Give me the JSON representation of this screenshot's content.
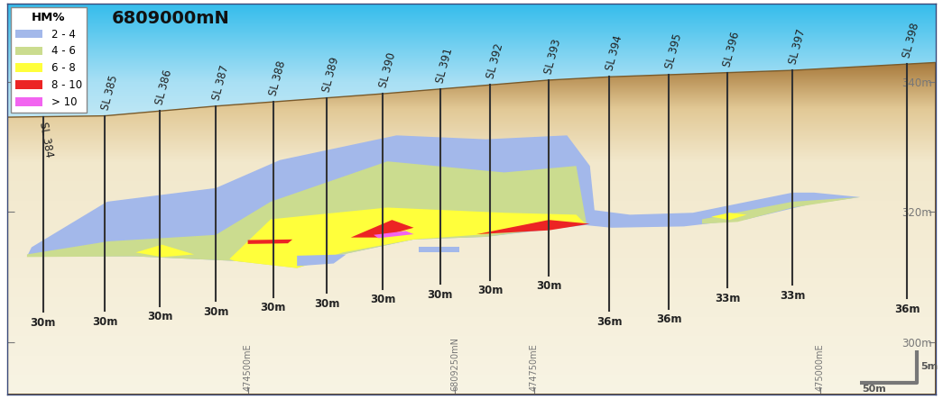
{
  "chart_data": {
    "type": "section",
    "title": "6809000mN",
    "legend": "upper left",
    "legend_title": "HM%",
    "xlim": [
      474290,
      475101
    ],
    "ylim": [
      292,
      352
    ],
    "xticks": [
      {
        "value": 474500,
        "label": "474500mE"
      },
      {
        "value": 474681,
        "label": "6809250mN"
      },
      {
        "value": 474750,
        "label": "474750mE"
      },
      {
        "value": 475000,
        "label": "475000mE"
      }
    ],
    "yticks": [
      {
        "value": 300,
        "label": "300m"
      },
      {
        "value": 320,
        "label": "320m"
      },
      {
        "value": 340,
        "label": "340m"
      }
    ],
    "series": [
      {
        "name": "2 - 4",
        "color": "#a3b8ea"
      },
      {
        "name": "4 - 6",
        "color": "#cbdc8f"
      },
      {
        "name": "6 - 8",
        "color": "#ffff3b"
      },
      {
        "name": "8 - 10",
        "color": "#ec2424"
      },
      {
        "name": "> 10",
        "color": "#f264f0"
      }
    ],
    "surface": {
      "x": [
        474290,
        474375,
        474472,
        474618,
        474763,
        474816,
        474976,
        475101
      ],
      "z": [
        334.6,
        334.8,
        336.3,
        338.2,
        340.3,
        340.8,
        341.8,
        343.0
      ]
    },
    "zones": [
      {
        "series": "2 - 4",
        "points": [
          [
            474311,
            314.6
          ],
          [
            474377,
            321.6
          ],
          [
            474472,
            323.7
          ],
          [
            474528,
            328.0
          ],
          [
            474630,
            331.8
          ],
          [
            474708,
            331.2
          ],
          [
            474779,
            331.8
          ],
          [
            474799,
            327.1
          ],
          [
            474803,
            320.3
          ],
          [
            474834,
            319.6
          ],
          [
            474889,
            319.9
          ],
          [
            474976,
            323.0
          ],
          [
            474995,
            323.0
          ],
          [
            475035,
            322.3
          ],
          [
            474991,
            321.2
          ],
          [
            474936,
            318.9
          ],
          [
            474881,
            317.8
          ],
          [
            474818,
            317.6
          ],
          [
            474795,
            318.0
          ],
          [
            474708,
            316.2
          ],
          [
            474645,
            315.8
          ],
          [
            474583,
            313.5
          ],
          [
            474543,
            311.7
          ],
          [
            474488,
            312.5
          ],
          [
            474402,
            313.2
          ],
          [
            474307,
            313.2
          ]
        ]
      },
      {
        "series": "4 - 6",
        "points": [
          [
            474307,
            313.5
          ],
          [
            474378,
            315.5
          ],
          [
            474472,
            316.5
          ],
          [
            474520,
            321.6
          ],
          [
            474622,
            327.8
          ],
          [
            474724,
            326.1
          ],
          [
            474787,
            327.1
          ],
          [
            474796,
            318.2
          ],
          [
            474708,
            316.2
          ],
          [
            474645,
            315.8
          ],
          [
            474583,
            313.5
          ],
          [
            474543,
            311.4
          ],
          [
            474488,
            312.5
          ],
          [
            474402,
            313.2
          ],
          [
            474307,
            313.1
          ]
        ]
      },
      {
        "series": "4 - 6",
        "points": [
          [
            474897,
            318.9
          ],
          [
            474976,
            321.6
          ],
          [
            475035,
            322.3
          ],
          [
            474976,
            320.7
          ],
          [
            474928,
            318.5
          ],
          [
            474897,
            318.2
          ]
        ]
      },
      {
        "series": "6 - 8",
        "points": [
          [
            474484,
            312.8
          ],
          [
            474520,
            318.9
          ],
          [
            474622,
            320.7
          ],
          [
            474724,
            319.9
          ],
          [
            474787,
            319.6
          ],
          [
            474795,
            318.2
          ],
          [
            474708,
            316.6
          ],
          [
            474645,
            315.8
          ],
          [
            474583,
            313.8
          ],
          [
            474543,
            311.4
          ],
          [
            474488,
            312.5
          ]
        ]
      },
      {
        "series": "6 - 8",
        "points": [
          [
            474402,
            313.8
          ],
          [
            474425,
            315.0
          ],
          [
            474453,
            313.5
          ],
          [
            474425,
            313.1
          ]
        ]
      },
      {
        "series": "6 - 8",
        "points": [
          [
            474905,
            319.3
          ],
          [
            474921,
            319.9
          ],
          [
            474936,
            319.6
          ],
          [
            474921,
            318.8
          ]
        ]
      },
      {
        "series": "2 - 4",
        "points": [
          [
            474649,
            314.7
          ],
          [
            474685,
            314.7
          ],
          [
            474685,
            313.9
          ],
          [
            474649,
            313.9
          ]
        ]
      },
      {
        "series": "2 - 4",
        "points": [
          [
            474543,
            313.3
          ],
          [
            474586,
            313.5
          ],
          [
            474575,
            312.1
          ],
          [
            474543,
            311.7
          ]
        ]
      },
      {
        "series": "8 - 10",
        "points": [
          [
            474500,
            315.7
          ],
          [
            474539,
            315.8
          ],
          [
            474535,
            315.2
          ],
          [
            474500,
            315.1
          ]
        ]
      },
      {
        "series": "8 - 10",
        "points": [
          [
            474590,
            316.1
          ],
          [
            474626,
            318.8
          ],
          [
            474645,
            317.6
          ],
          [
            474614,
            316.1
          ]
        ]
      },
      {
        "series": "8 - 10",
        "points": [
          [
            474700,
            316.6
          ],
          [
            474763,
            318.8
          ],
          [
            474799,
            318.2
          ],
          [
            474763,
            317.2
          ]
        ]
      },
      {
        "series": "> 10",
        "points": [
          [
            474610,
            316.5
          ],
          [
            474638,
            317.1
          ],
          [
            474645,
            316.6
          ],
          [
            474614,
            316.0
          ]
        ]
      }
    ],
    "drill_holes": [
      {
        "name": "SL 384",
        "x": 474321,
        "depth": 30,
        "depth_label": "30m"
      },
      {
        "name": "SL 385",
        "x": 474375,
        "depth": 30,
        "depth_label": "30m"
      },
      {
        "name": "SL 386",
        "x": 474423,
        "depth": 30,
        "depth_label": "30m"
      },
      {
        "name": "SL 387",
        "x": 474472,
        "depth": 30,
        "depth_label": "30m"
      },
      {
        "name": "SL 388",
        "x": 474522,
        "depth": 30,
        "depth_label": "30m"
      },
      {
        "name": "SL 389",
        "x": 474569,
        "depth": 30,
        "depth_label": "30m"
      },
      {
        "name": "SL 390",
        "x": 474618,
        "depth": 30,
        "depth_label": "30m"
      },
      {
        "name": "SL 391",
        "x": 474668,
        "depth": 30,
        "depth_label": "30m"
      },
      {
        "name": "SL 392",
        "x": 474712,
        "depth": 30,
        "depth_label": "30m"
      },
      {
        "name": "SL 393",
        "x": 474763,
        "depth": 30,
        "depth_label": "30m"
      },
      {
        "name": "SL 394",
        "x": 474816,
        "depth": 36,
        "depth_label": "36m"
      },
      {
        "name": "SL 395",
        "x": 474868,
        "depth": 36,
        "depth_label": "36m"
      },
      {
        "name": "SL 396",
        "x": 474919,
        "depth": 33,
        "depth_label": "33m"
      },
      {
        "name": "SL 397",
        "x": 474976,
        "depth": 33,
        "depth_label": "33m"
      },
      {
        "name": "SL 398",
        "x": 475076,
        "depth": 36,
        "depth_label": "36m"
      }
    ],
    "scale_bar": {
      "horizontal": 50,
      "horizontal_label": "50m",
      "vertical": 5,
      "vertical_label": "5m"
    }
  }
}
